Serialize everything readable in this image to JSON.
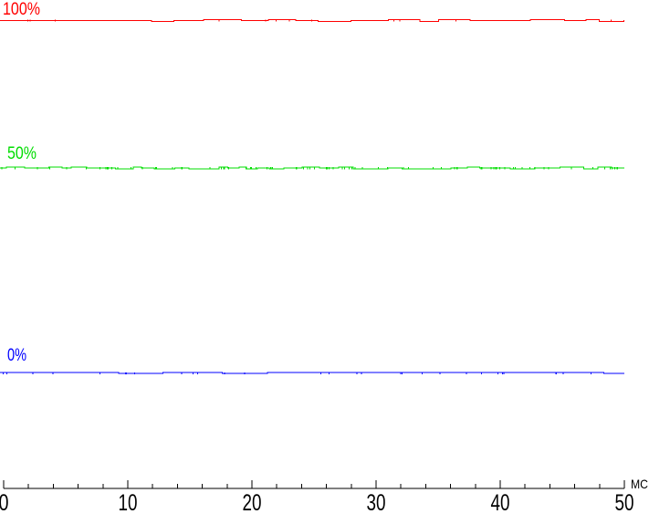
{
  "chart_data": {
    "type": "line",
    "title": "",
    "xlabel": "МС",
    "ylabel": "",
    "x_range": [
      0,
      50
    ],
    "x_tick_labels": [
      "0",
      "10",
      "20",
      "30",
      "40",
      "50"
    ],
    "x_major_tick_step": 10,
    "x_minor_tick_step": 2,
    "grid": "off",
    "legend": "inline-labels-at-left-above-each-trace",
    "background_color": "#ffffff",
    "axis_color": "#000000",
    "series": [
      {
        "name": "100%",
        "level_percent": 100,
        "color": "#ff0000",
        "x": [
          0,
          50
        ],
        "values": [
          100,
          100
        ],
        "note": "constant flat trace with ~1px jitter noise"
      },
      {
        "name": "50%",
        "level_percent": 50,
        "color": "#00dd00",
        "x": [
          0,
          50
        ],
        "values": [
          50,
          50
        ],
        "note": "constant flat trace with ~1px jitter noise"
      },
      {
        "name": "0%",
        "level_percent": 0,
        "color": "#0000ff",
        "x": [
          0,
          50
        ],
        "values": [
          0,
          0
        ],
        "note": "constant flat trace, occasional 1px dips below"
      }
    ]
  }
}
